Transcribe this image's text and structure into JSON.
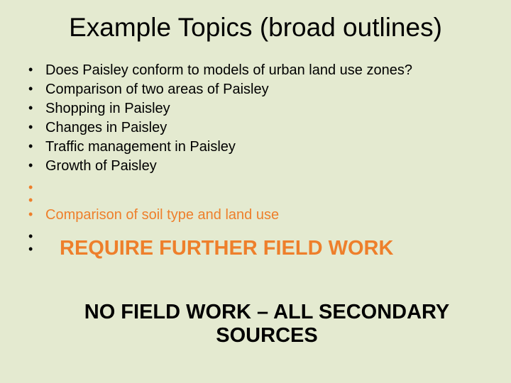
{
  "colors": {
    "background": "#e4ead0",
    "text_black": "#000000",
    "text_orange": "#ee7f2b"
  },
  "typography": {
    "title_fontsize": 37,
    "body_fontsize": 20,
    "overlay_fontsize": 29,
    "font_family": "Arial"
  },
  "title": "Example Topics (broad outlines)",
  "bullets_black": [
    "Does Paisley conform to models of urban land use zones?",
    "Comparison of two areas of Paisley",
    "Shopping in Paisley",
    "Changes in Paisley",
    "Traffic management in Paisley",
    "Growth of Paisley"
  ],
  "overlay_orange": "REQUIRE FURTHER FIELD WORK",
  "bullets_orange": [
    "Comparison of soil type and land use"
  ],
  "overlay_black": "NO FIELD WORK – ALL SECONDARY SOURCES"
}
